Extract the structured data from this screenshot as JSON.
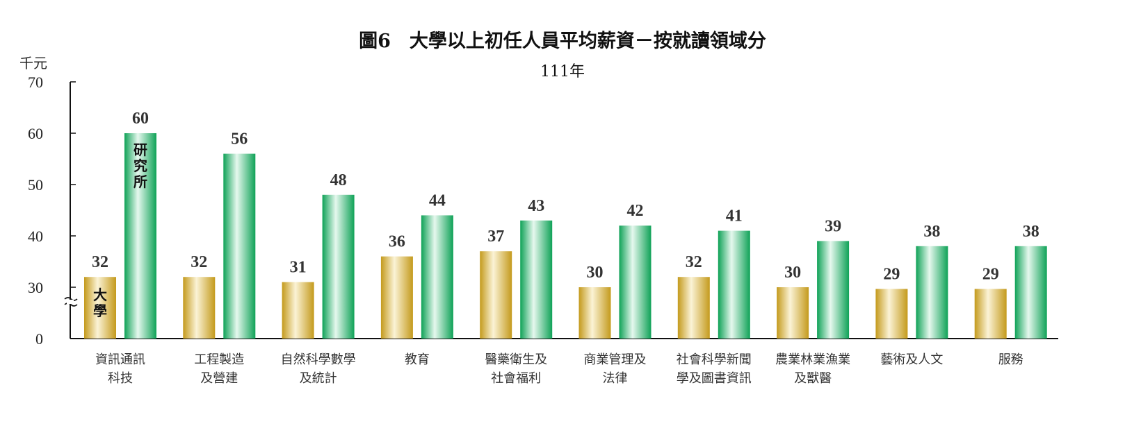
{
  "chart_data": {
    "type": "bar",
    "title": "圖6　大學以上初任人員平均薪資－按就讀領域分",
    "subtitle": "111年",
    "ylabel": "千元",
    "ylim": [
      0,
      70
    ],
    "axis_break": true,
    "y_ticks": [
      "0",
      "30",
      "40",
      "50",
      "60",
      "70"
    ],
    "categories": [
      [
        "資訊通訊",
        "科技"
      ],
      [
        "工程製造",
        "及營建"
      ],
      [
        "自然科學數學",
        "及統計"
      ],
      [
        "教育"
      ],
      [
        "醫藥衛生及",
        "社會福利"
      ],
      [
        "商業管理及",
        "法律"
      ],
      [
        "社會科學新聞",
        "學及圖書資訊"
      ],
      [
        "農業林業漁業",
        "及獸醫"
      ],
      [
        "藝術及人文"
      ],
      [
        "服務"
      ]
    ],
    "series": [
      {
        "name": "大學",
        "values": [
          32,
          32,
          31,
          36,
          37,
          30,
          32,
          30,
          29,
          29
        ],
        "color": "#c9a227"
      },
      {
        "name": "研究所",
        "values": [
          60,
          56,
          48,
          44,
          43,
          42,
          41,
          39,
          38,
          38
        ],
        "color": "#1fb562"
      }
    ],
    "grid": false
  }
}
